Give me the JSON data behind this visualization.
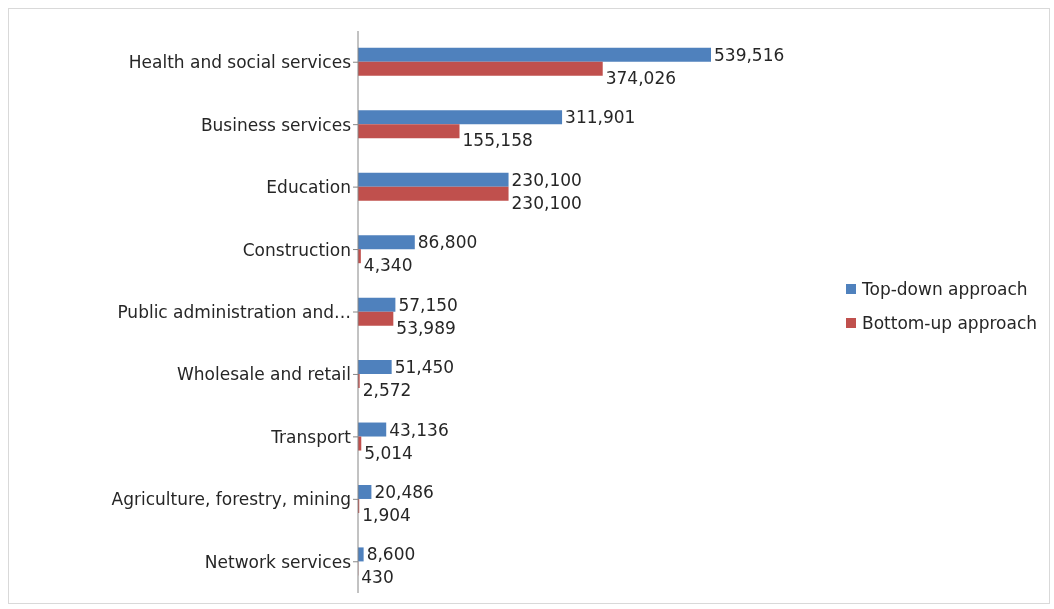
{
  "chart_data": {
    "type": "bar",
    "orientation": "horizontal",
    "categories": [
      "Health and social services",
      "Business services",
      "Education",
      "Construction",
      "Public administration and…",
      "Wholesale and retail",
      "Transport",
      "Agriculture, forestry, mining",
      "Network services"
    ],
    "series": [
      {
        "name": "Top-down approach",
        "color": "#4f81bd",
        "values": [
          539516,
          311901,
          230100,
          86800,
          57150,
          51450,
          43136,
          20486,
          8600
        ],
        "value_labels": [
          "539,516",
          "311,901",
          "230,100",
          "86,800",
          "57,150",
          "51,450",
          "43,136",
          "20,486",
          "8,600"
        ]
      },
      {
        "name": "Bottom-up approach",
        "color": "#c0504d",
        "values": [
          374026,
          155158,
          230100,
          4340,
          53989,
          2572,
          5014,
          1904,
          430
        ],
        "value_labels": [
          "374,026",
          "155,158",
          "230,100",
          "4,340",
          "53,989",
          "2,572",
          "5,014",
          "1,904",
          "430"
        ]
      }
    ],
    "legend": "right"
  }
}
